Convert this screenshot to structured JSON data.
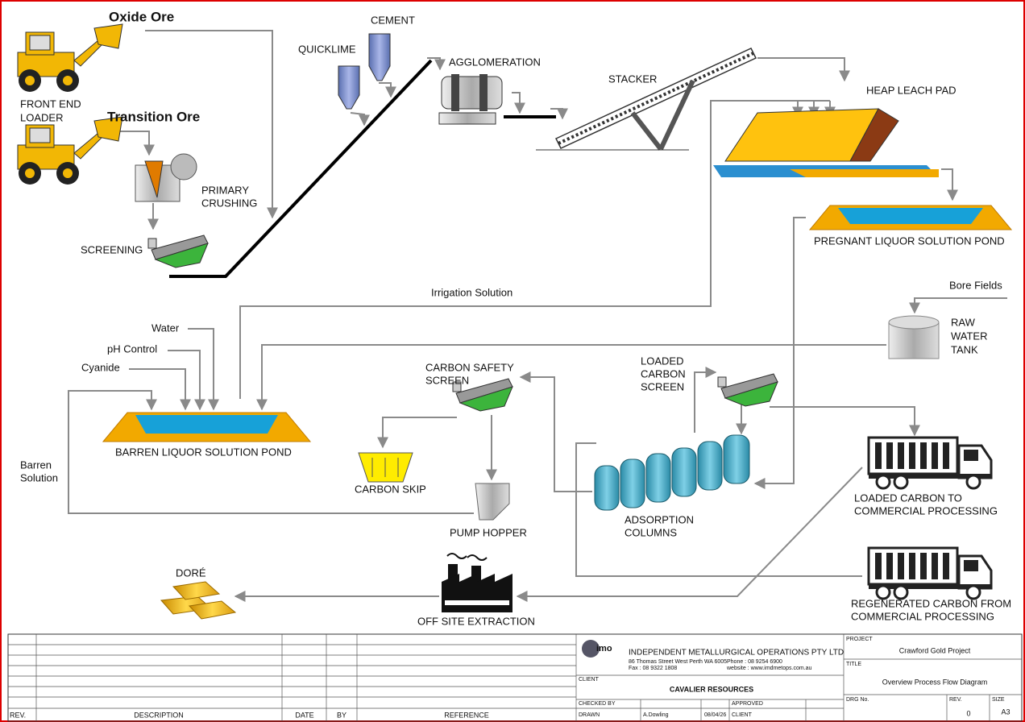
{
  "labels": {
    "oxide_ore": "Oxide Ore",
    "transition_ore": "Transition Ore",
    "front_end_loader": [
      "FRONT END",
      "LOADER"
    ],
    "primary_crushing": [
      "PRIMARY",
      "CRUSHING"
    ],
    "screening": "SCREENING",
    "quicklime": "QUICKLIME",
    "cement": "CEMENT",
    "agglomeration": "AGGLOMERATION",
    "stacker": "STACKER",
    "heap_leach_pad": "HEAP LEACH PAD",
    "pregnant_pond": "PREGNANT LIQUOR SOLUTION POND",
    "irrigation_solution": "Irrigation Solution",
    "bore_fields": "Bore Fields",
    "raw_water_tank": [
      "RAW",
      "WATER",
      "TANK"
    ],
    "water": "Water",
    "ph_control": "pH Control",
    "cyanide": "Cyanide",
    "barren_pond": "BARREN LIQUOR SOLUTION POND",
    "barren_solution": [
      "Barren",
      "Solution"
    ],
    "carbon_safety_screen": [
      "CARBON SAFETY",
      "SCREEN"
    ],
    "carbon_skip": "CARBON SKIP",
    "pump_hopper": "PUMP HOPPER",
    "loaded_carbon_screen": [
      "LOADED",
      "CARBON",
      "SCREEN"
    ],
    "adsorption_columns": [
      "ADSORPTION",
      "COLUMNS"
    ],
    "loaded_carbon_to": [
      "LOADED CARBON TO",
      "COMMERCIAL PROCESSING"
    ],
    "regenerated_carbon": [
      "REGENERATED CARBON FROM",
      "COMMERCIAL PROCESSING"
    ],
    "dore": "DORÉ",
    "off_site_extraction": "OFF SITE EXTRACTION"
  },
  "title_block": {
    "rev_header": "REV.",
    "description_header": "DESCRIPTION",
    "date_header": "DATE",
    "by_header": "BY",
    "reference_header": "REFERENCE",
    "logo": "imo",
    "company": "INDEPENDENT METALLURGICAL OPERATIONS PTY LTD",
    "address": "86 Thomas Street West Perth WA 6005",
    "phone": "Phone : 08 9254 6900",
    "fax": "Fax : 08 9322 1808",
    "website": "website : www.imdmetops.com.au",
    "client_label": "CLIENT",
    "client": "CAVALIER RESOURCES",
    "checked_by": "CHECKED BY",
    "approved": "APPROVED",
    "drawn": "DRAWN",
    "drawn_by": "A.Dowling",
    "drawn_date": "08/04/26",
    "client_sign": "CLIENT",
    "project_label": "PROJECT",
    "project": "Crawford Gold Project",
    "title_label": "TITLE",
    "title": "Overview Process Flow Diagram",
    "drg_no": "DRG No.",
    "rev_label": "REV.",
    "rev": "0",
    "size_label": "SIZE",
    "size": "A3"
  }
}
